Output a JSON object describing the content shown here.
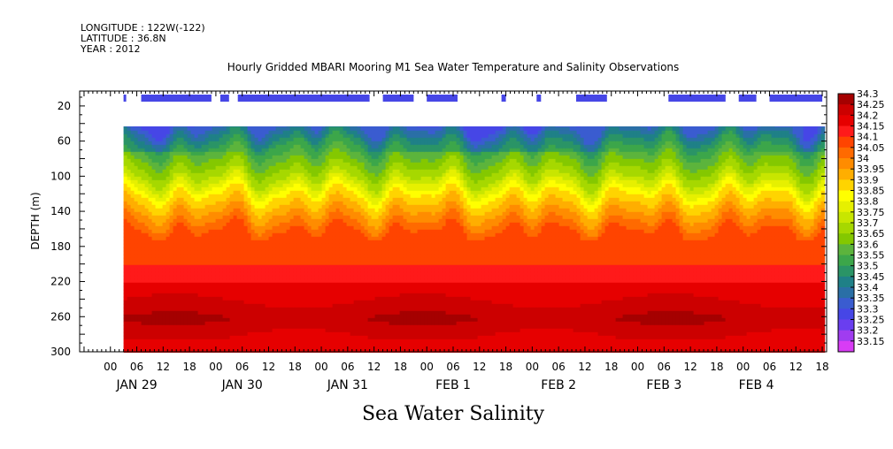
{
  "header": {
    "longitude": "LONGITUDE : 122W(-122)",
    "latitude": "LATITUDE : 36.8N",
    "year": "YEAR : 2012"
  },
  "chart_data": {
    "type": "heatmap",
    "title": "Hourly Gridded MBARI Mooring M1 Sea Water Temperature and Salinity Observations",
    "bottom_title": "Sea Water Salinity",
    "ylabel": "DEPTH (m)",
    "y_axis": {
      "ticks": [
        20,
        60,
        100,
        140,
        180,
        220,
        260,
        300
      ],
      "range": [
        300,
        3
      ],
      "inverted": true,
      "units": "m"
    },
    "x_axis": {
      "range_hours": [
        0,
        162
      ],
      "hour_labels": [
        "00",
        "06",
        "12",
        "18",
        "00",
        "06",
        "12",
        "18",
        "00",
        "06",
        "12",
        "18",
        "00",
        "06",
        "12",
        "18",
        "00",
        "06",
        "12",
        "18",
        "00",
        "06",
        "12",
        "18",
        "00",
        "06",
        "12",
        "18"
      ],
      "hour_label_positions": [
        0,
        6,
        12,
        18,
        24,
        30,
        36,
        42,
        48,
        54,
        60,
        66,
        72,
        78,
        84,
        90,
        96,
        102,
        108,
        114,
        120,
        126,
        132,
        138,
        144,
        150,
        156,
        162
      ],
      "day_labels": [
        {
          "text": "JAN 29",
          "hour": 6
        },
        {
          "text": "JAN 30",
          "hour": 30
        },
        {
          "text": "JAN 31",
          "hour": 54
        },
        {
          "text": "FEB  1",
          "hour": 78
        },
        {
          "text": "FEB  2",
          "hour": 102
        },
        {
          "text": "FEB  3",
          "hour": 126
        },
        {
          "text": "FEB  4",
          "hour": 147
        }
      ]
    },
    "data_start_hour": 3,
    "shallow_data_depth": 10,
    "profile_top_depth": 40,
    "surface_data_segments_hours": [
      [
        3,
        3.5
      ],
      [
        7,
        23
      ],
      [
        25,
        27
      ],
      [
        29,
        59
      ],
      [
        62,
        69
      ],
      [
        72,
        79
      ],
      [
        89,
        90
      ],
      [
        97,
        98
      ],
      [
        106,
        113
      ],
      [
        127,
        140
      ],
      [
        143,
        147
      ],
      [
        150,
        162
      ]
    ],
    "colorbar": {
      "levels": [
        "34.3",
        "34.25",
        "34.2",
        "34.15",
        "34.1",
        "34.05",
        "34",
        "33.95",
        "33.9",
        "33.85",
        "33.8",
        "33.75",
        "33.7",
        "33.65",
        "33.6",
        "33.55",
        "33.5",
        "33.45",
        "33.4",
        "33.35",
        "33.3",
        "33.25",
        "33.2",
        "33.15"
      ],
      "colors": [
        "#a50000",
        "#cc0000",
        "#e60000",
        "#ff1a1a",
        "#ff4400",
        "#ff6a00",
        "#ff8c00",
        "#ffae00",
        "#ffd400",
        "#ffff00",
        "#e6f000",
        "#c8e600",
        "#a6d800",
        "#84c800",
        "#5cb43c",
        "#3ca64a",
        "#2a9466",
        "#1f8087",
        "#2a6fa6",
        "#3a5cd0",
        "#4646e6",
        "#6a3ef0",
        "#a03cf0",
        "#d83cf5"
      ]
    },
    "profile_description_depth_salinity": [
      [
        40,
        33.35
      ],
      [
        60,
        33.5
      ],
      [
        80,
        33.6
      ],
      [
        100,
        33.7
      ],
      [
        120,
        33.85
      ],
      [
        140,
        33.95
      ],
      [
        160,
        34.05
      ],
      [
        180,
        34.05
      ],
      [
        200,
        34.1
      ],
      [
        220,
        34.15
      ],
      [
        240,
        34.2
      ],
      [
        260,
        34.25
      ],
      [
        280,
        34.2
      ],
      [
        300,
        34.15
      ]
    ]
  }
}
